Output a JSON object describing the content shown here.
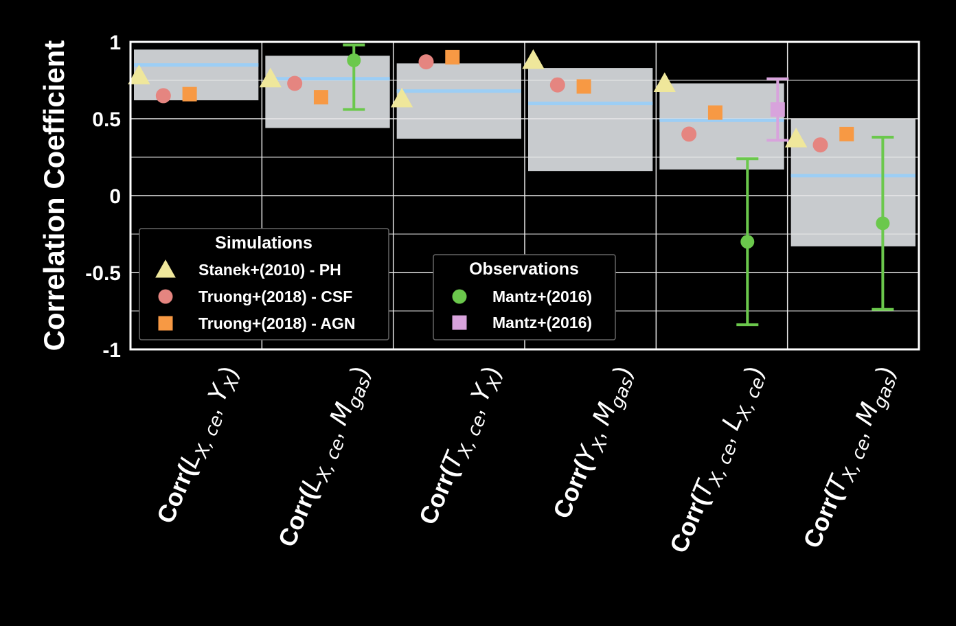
{
  "chart_data": {
    "type": "scatter",
    "ylabel": "Correlation Coefficient",
    "ylim": [
      -1,
      1
    ],
    "yticks": [
      1,
      0.5,
      0,
      -0.5,
      -1
    ],
    "ytick_labels": [
      "1",
      "0.5",
      "0",
      "-0.5",
      "-1"
    ],
    "grid": true,
    "categories": [
      {
        "prefix": "Corr(",
        "a": "L",
        "a_sub": "X, ce",
        "sep": ", ",
        "b": "Y",
        "b_sub": "X",
        "suffix": ")"
      },
      {
        "prefix": "Corr(",
        "a": "L",
        "a_sub": "X, ce",
        "sep": ", ",
        "b": "M",
        "b_sub": "gas",
        "suffix": ")"
      },
      {
        "prefix": "Corr(",
        "a": "T",
        "a_sub": "X, ce",
        "sep": ", ",
        "b": "Y",
        "b_sub": "X",
        "suffix": ")"
      },
      {
        "prefix": "Corr(",
        "a": "Y",
        "a_sub": "X",
        "sep": ", ",
        "b": "M",
        "b_sub": "gas",
        "suffix": ")"
      },
      {
        "prefix": "Corr(",
        "a": "T",
        "a_sub": "X, ce",
        "sep": ", ",
        "b": "L",
        "b_sub": "X, ce",
        "suffix": ")"
      },
      {
        "prefix": "Corr(",
        "a": "T",
        "a_sub": "X, ce",
        "sep": ", ",
        "b": "M",
        "b_sub": "gas",
        "suffix": ")"
      }
    ],
    "bands": [
      {
        "low": 0.62,
        "high": 0.95,
        "median": 0.85
      },
      {
        "low": 0.44,
        "high": 0.91,
        "median": 0.76
      },
      {
        "low": 0.37,
        "high": 0.86,
        "median": 0.68
      },
      {
        "low": 0.16,
        "high": 0.83,
        "median": 0.6
      },
      {
        "low": 0.17,
        "high": 0.73,
        "median": 0.49
      },
      {
        "low": -0.33,
        "high": 0.5,
        "median": 0.13
      }
    ],
    "series": [
      {
        "name": "Stanek+(2010) - PH",
        "group": "Simulations",
        "marker": "triangle",
        "color": "#efe79b",
        "values": [
          0.78,
          0.76,
          0.63,
          0.88,
          0.73,
          0.37
        ]
      },
      {
        "name": "Truong+(2018) - CSF",
        "group": "Simulations",
        "marker": "circle",
        "color": "#e58580",
        "values": [
          0.65,
          0.73,
          0.87,
          0.72,
          0.4,
          0.33
        ]
      },
      {
        "name": "Truong+(2018) - AGN",
        "group": "Simulations",
        "marker": "square",
        "color": "#f79944",
        "values": [
          0.66,
          0.64,
          0.9,
          0.71,
          0.54,
          0.4
        ]
      },
      {
        "name": "Mantz+(2016)",
        "group": "Observations",
        "marker": "circle",
        "color": "#6bc84c",
        "points": [
          {
            "category": 1,
            "value": 0.88,
            "low": 0.56,
            "high": 0.98
          },
          {
            "category": 4,
            "value": -0.3,
            "low": -0.84,
            "high": 0.24
          },
          {
            "category": 5,
            "value": -0.18,
            "low": -0.74,
            "high": 0.38
          }
        ]
      },
      {
        "name": "Mantz+(2016)",
        "group": "Observations",
        "marker": "square",
        "color": "#d8a3dc",
        "points": [
          {
            "category": 4,
            "value": 0.56,
            "low": 0.36,
            "high": 0.76
          }
        ]
      }
    ],
    "legends": [
      {
        "title": "Simulations",
        "placement": "lower-left",
        "series": [
          0,
          1,
          2
        ]
      },
      {
        "title": "Observations",
        "placement": "lower-center",
        "series": [
          3,
          4
        ]
      }
    ],
    "colors": {
      "band": "#c8cbce",
      "median_line": "#9ccef5",
      "grid": "#e8e8e8",
      "frame": "#ffffff",
      "background": "#000000"
    }
  }
}
